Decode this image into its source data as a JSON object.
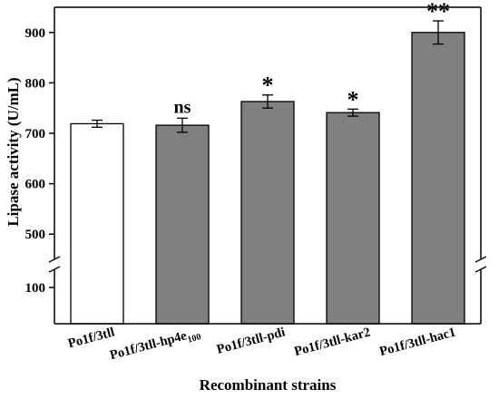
{
  "chart_data": {
    "type": "bar",
    "xlabel": "Recombinant strains",
    "ylabel": "Lipase activity (U/mL)",
    "ylim": [
      0,
      950
    ],
    "axis_break": [
      150,
      450
    ],
    "yticks": [
      100,
      500,
      600,
      700,
      800,
      900
    ],
    "categories": [
      {
        "main": "Po1f/3tll",
        "sub": ""
      },
      {
        "main": "Po1f/3tll-hp4e",
        "sub": "100"
      },
      {
        "main": "Po1f/3tll-pdi",
        "sub": ""
      },
      {
        "main": "Po1f/3tll-kar2",
        "sub": ""
      },
      {
        "main": "Po1f/3tll-hac1",
        "sub": ""
      }
    ],
    "values": [
      719,
      716,
      763,
      741,
      900
    ],
    "errors": [
      7,
      14,
      13,
      7,
      23
    ],
    "significance": [
      "",
      "ns",
      "*",
      "*",
      "**"
    ],
    "colors": [
      "#ffffff",
      "#808080",
      "#808080",
      "#808080",
      "#808080"
    ],
    "edge_color": "#000000",
    "grid": false
  }
}
